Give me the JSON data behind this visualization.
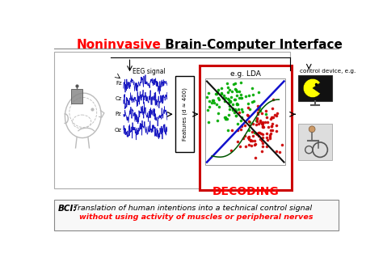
{
  "title_red": "Noninvasive",
  "title_black": " Brain-Computer Interface",
  "title_fontsize": 11,
  "bg_color": "#ffffff",
  "eeg_label": "EEG signal",
  "eeg_channels": [
    "Fz",
    "Cz",
    "Pz",
    "Oz"
  ],
  "features_label": "Features (d ≈ 400)",
  "lda_label": "e.g. LDA",
  "decoding_label": "DECODING",
  "control_label": "control device, e.g.",
  "bci_label_bold": "BCI:",
  "bci_text": " Translation of human intentions into a technical control signal",
  "bci_text2": "without using activity of muscles or peripheral nerves",
  "box_color_main": "#cc0000",
  "scatter_green": "#00aa00",
  "scatter_red": "#cc0000",
  "line_blue": "#1111cc",
  "line_black": "#111111",
  "line_green_dark": "#005500",
  "head_color": "#bbbbbb",
  "eeg_line_color": "#0000bb"
}
